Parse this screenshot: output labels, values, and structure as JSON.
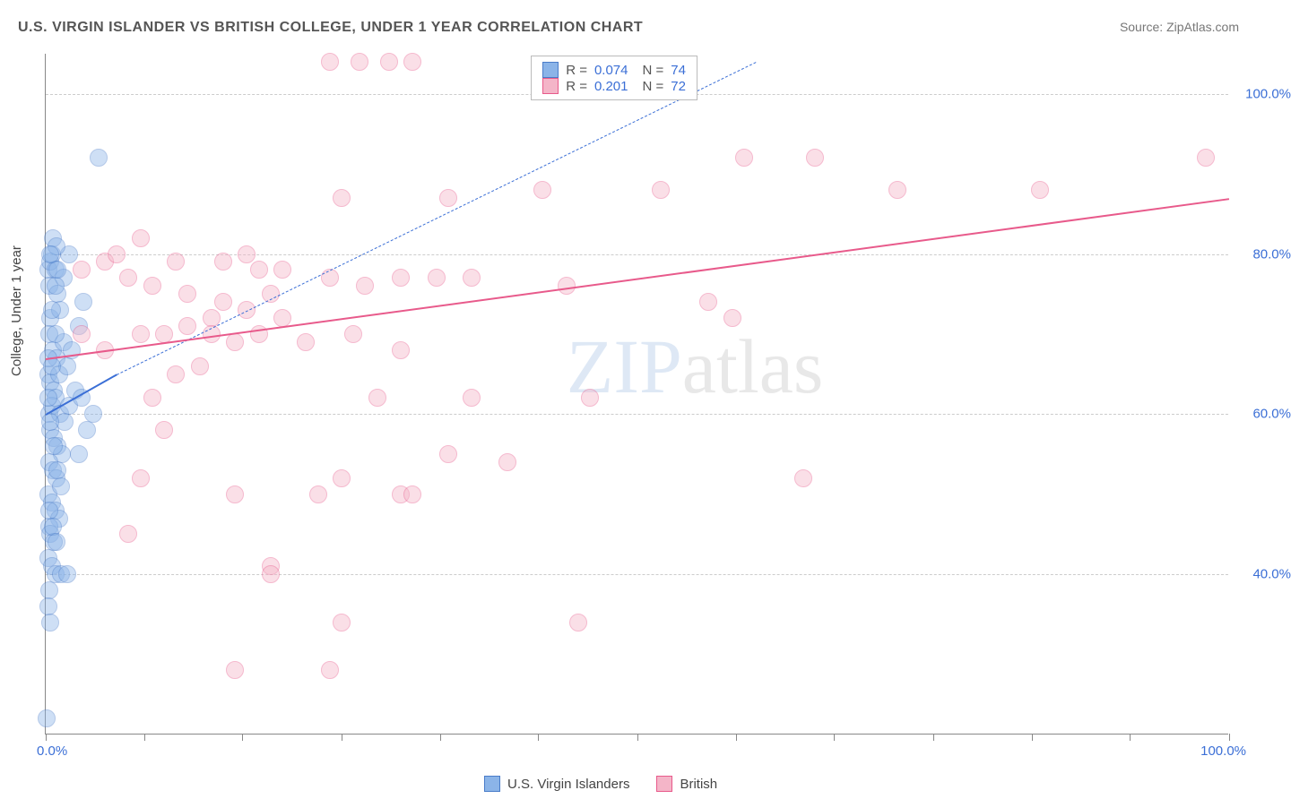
{
  "title": "U.S. VIRGIN ISLANDER VS BRITISH COLLEGE, UNDER 1 YEAR CORRELATION CHART",
  "source": "Source: ZipAtlas.com",
  "ylabel": "College, Under 1 year",
  "watermark": {
    "part1": "ZIP",
    "part2": "atlas",
    "color1": "#6b9bd4",
    "color2": "#999999"
  },
  "chart": {
    "type": "scatter",
    "background_color": "#ffffff",
    "grid_color": "#cccccc",
    "border_color": "#888888",
    "xlim": [
      0,
      100
    ],
    "ylim": [
      20,
      105
    ],
    "y_ticks": [
      40,
      60,
      80,
      100
    ],
    "x_minor_ticks": [
      0,
      8.3,
      16.6,
      25,
      33.3,
      41.6,
      50,
      58.3,
      66.6,
      75,
      83.3,
      91.6,
      100
    ],
    "x_labels": {
      "min": "0.0%",
      "max": "100.0%"
    },
    "y_label_suffix": "%",
    "label_color": "#3b6fd6",
    "label_fontsize": 15,
    "marker_radius": 10,
    "marker_opacity": 0.42,
    "series": [
      {
        "name": "U.S. Virgin Islanders",
        "color_fill": "#8bb4e8",
        "color_stroke": "#4a7cc9",
        "R": "0.074",
        "N": "74",
        "trend": {
          "x1": 0,
          "y1": 60,
          "x2": 6,
          "y2": 65,
          "dashed_ext_x2": 60,
          "dashed_ext_y2": 104,
          "color": "#3b6fd6",
          "width": 2.5
        },
        "points": [
          [
            0.2,
            78
          ],
          [
            0.4,
            79
          ],
          [
            0.3,
            76
          ],
          [
            0.5,
            80
          ],
          [
            0.8,
            78
          ],
          [
            1.0,
            75
          ],
          [
            0.4,
            72
          ],
          [
            1.2,
            73
          ],
          [
            0.3,
            70
          ],
          [
            0.6,
            68
          ],
          [
            0.9,
            67
          ],
          [
            1.5,
            69
          ],
          [
            0.2,
            65
          ],
          [
            0.4,
            64
          ],
          [
            0.7,
            63
          ],
          [
            1.1,
            65
          ],
          [
            1.8,
            66
          ],
          [
            2.2,
            68
          ],
          [
            0.3,
            60
          ],
          [
            0.5,
            61
          ],
          [
            0.8,
            62
          ],
          [
            1.2,
            60
          ],
          [
            1.6,
            59
          ],
          [
            2.0,
            61
          ],
          [
            2.5,
            63
          ],
          [
            3.0,
            62
          ],
          [
            0.4,
            58
          ],
          [
            0.7,
            57
          ],
          [
            1.0,
            56
          ],
          [
            1.4,
            55
          ],
          [
            0.3,
            54
          ],
          [
            0.6,
            53
          ],
          [
            0.9,
            52
          ],
          [
            0.2,
            50
          ],
          [
            0.5,
            49
          ],
          [
            0.8,
            48
          ],
          [
            1.1,
            47
          ],
          [
            0.3,
            46
          ],
          [
            0.4,
            45
          ],
          [
            0.7,
            44
          ],
          [
            0.2,
            42
          ],
          [
            0.5,
            41
          ],
          [
            0.8,
            40
          ],
          [
            1.3,
            40
          ],
          [
            1.8,
            40
          ],
          [
            0.3,
            38
          ],
          [
            0.2,
            36
          ],
          [
            0.4,
            34
          ],
          [
            4.5,
            92
          ],
          [
            2.8,
            71
          ],
          [
            3.2,
            74
          ],
          [
            1.5,
            77
          ],
          [
            2.0,
            80
          ],
          [
            0.6,
            82
          ],
          [
            0.9,
            81
          ],
          [
            0.1,
            22
          ],
          [
            4.0,
            60
          ],
          [
            3.5,
            58
          ],
          [
            2.8,
            55
          ],
          [
            0.2,
            67
          ],
          [
            0.5,
            73
          ],
          [
            0.8,
            76
          ],
          [
            1.0,
            78
          ],
          [
            0.4,
            80
          ],
          [
            0.3,
            48
          ],
          [
            0.6,
            46
          ],
          [
            0.9,
            44
          ],
          [
            0.2,
            62
          ],
          [
            0.4,
            59
          ],
          [
            0.7,
            56
          ],
          [
            1.0,
            53
          ],
          [
            1.3,
            51
          ],
          [
            0.5,
            66
          ],
          [
            0.8,
            70
          ]
        ]
      },
      {
        "name": "British",
        "color_fill": "#f4b5c8",
        "color_stroke": "#e85a8b",
        "R": "0.201",
        "N": "72",
        "trend": {
          "x1": 0,
          "y1": 67,
          "x2": 100,
          "y2": 87,
          "color": "#e85a8b",
          "width": 2.5
        },
        "points": [
          [
            24,
            104
          ],
          [
            26.5,
            104
          ],
          [
            29,
            104
          ],
          [
            31,
            104
          ],
          [
            59,
            92
          ],
          [
            65,
            92
          ],
          [
            98,
            92
          ],
          [
            84,
            88
          ],
          [
            42,
            88
          ],
          [
            25,
            87
          ],
          [
            34,
            87
          ],
          [
            8,
            82
          ],
          [
            11,
            79
          ],
          [
            15,
            79
          ],
          [
            17,
            80
          ],
          [
            18,
            78
          ],
          [
            20,
            78
          ],
          [
            3,
            78
          ],
          [
            5,
            79
          ],
          [
            6,
            80
          ],
          [
            7,
            77
          ],
          [
            9,
            76
          ],
          [
            12,
            75
          ],
          [
            15,
            74
          ],
          [
            17,
            73
          ],
          [
            19,
            75
          ],
          [
            24,
            77
          ],
          [
            27,
            76
          ],
          [
            30,
            77
          ],
          [
            33,
            77
          ],
          [
            36,
            77
          ],
          [
            44,
            76
          ],
          [
            56,
            74
          ],
          [
            14,
            72
          ],
          [
            3,
            70
          ],
          [
            5,
            68
          ],
          [
            8,
            70
          ],
          [
            10,
            70
          ],
          [
            12,
            71
          ],
          [
            14,
            70
          ],
          [
            16,
            69
          ],
          [
            18,
            70
          ],
          [
            20,
            72
          ],
          [
            22,
            69
          ],
          [
            26,
            70
          ],
          [
            30,
            68
          ],
          [
            13,
            66
          ],
          [
            11,
            65
          ],
          [
            9,
            62
          ],
          [
            10,
            58
          ],
          [
            28,
            62
          ],
          [
            36,
            62
          ],
          [
            46,
            62
          ],
          [
            34,
            55
          ],
          [
            39,
            54
          ],
          [
            8,
            52
          ],
          [
            16,
            50
          ],
          [
            23,
            50
          ],
          [
            25,
            52
          ],
          [
            30,
            50
          ],
          [
            31,
            50
          ],
          [
            64,
            52
          ],
          [
            7,
            45
          ],
          [
            19,
            41
          ],
          [
            19,
            40
          ],
          [
            16,
            28
          ],
          [
            24,
            28
          ],
          [
            25,
            34
          ],
          [
            45,
            34
          ],
          [
            72,
            88
          ],
          [
            52,
            88
          ],
          [
            58,
            72
          ]
        ]
      }
    ]
  },
  "legend_bottom": [
    {
      "label": "U.S. Virgin Islanders",
      "fill": "#8bb4e8",
      "stroke": "#4a7cc9"
    },
    {
      "label": "British",
      "fill": "#f4b5c8",
      "stroke": "#e85a8b"
    }
  ]
}
